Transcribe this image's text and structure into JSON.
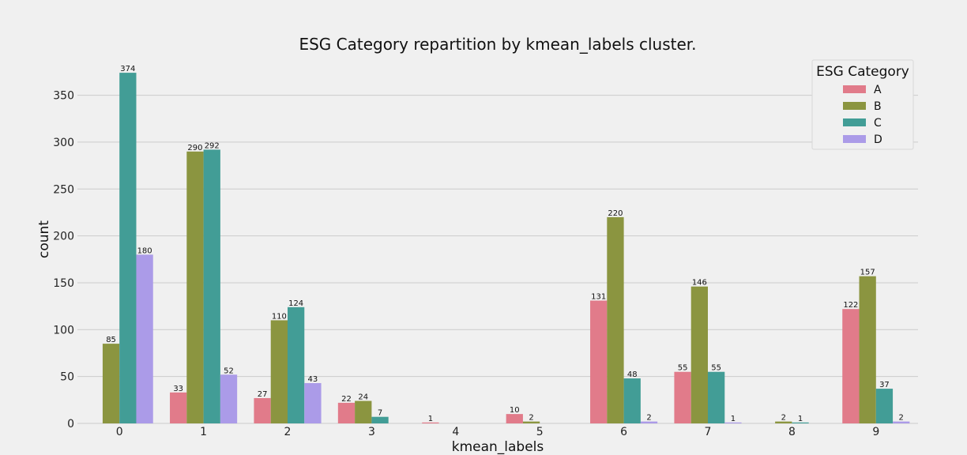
{
  "chart_data": {
    "type": "bar",
    "title": "ESG Category repartition by kmean_labels cluster.",
    "xlabel": "kmean_labels",
    "ylabel": "count",
    "categories": [
      "0",
      "1",
      "2",
      "3",
      "4",
      "5",
      "6",
      "7",
      "8",
      "9"
    ],
    "ylim": [
      0,
      395
    ],
    "yticks": [
      0,
      50,
      100,
      150,
      200,
      250,
      300,
      350
    ],
    "grid": true,
    "legend": {
      "title": "ESG Category",
      "placement": "top-right"
    },
    "series": [
      {
        "name": "A",
        "color": "#e17b8a",
        "values": [
          null,
          33,
          27,
          22,
          1,
          10,
          131,
          55,
          null,
          122
        ]
      },
      {
        "name": "B",
        "color": "#8b9540",
        "values": [
          85,
          290,
          110,
          24,
          null,
          2,
          220,
          146,
          2,
          157
        ]
      },
      {
        "name": "C",
        "color": "#429d96",
        "values": [
          374,
          292,
          124,
          7,
          null,
          null,
          48,
          55,
          1,
          37
        ]
      },
      {
        "name": "D",
        "color": "#ab9be8",
        "values": [
          180,
          52,
          43,
          null,
          null,
          null,
          2,
          1,
          null,
          2
        ]
      }
    ]
  }
}
